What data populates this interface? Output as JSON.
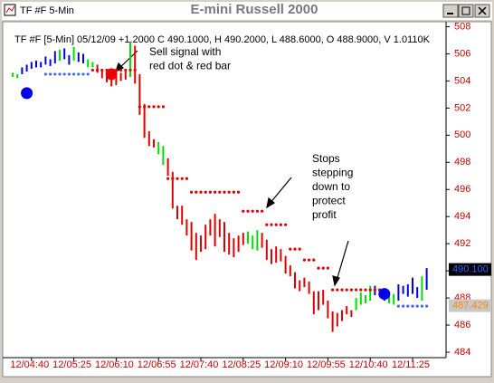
{
  "window": {
    "title": "E-mini Russell 2000",
    "tab": "TF #F 5-Min"
  },
  "chart_data": {
    "type": "ohlc",
    "subtitle": "TF #F [5-Min] 05/12/09 +1.2000 C 490.1000, H 490.2000, L 488.6000, O 488.9000, V 1.0110K",
    "categories": [
      null,
      null,
      null,
      null,
      "12/04:40",
      null,
      null,
      null,
      null,
      null,
      null,
      null,
      null,
      "12/05:25",
      null,
      null,
      null,
      null,
      null,
      null,
      null,
      null,
      "12/06:10",
      null,
      null,
      null,
      null,
      null,
      null,
      null,
      null,
      "12/06:55",
      null,
      null,
      null,
      null,
      null,
      null,
      null,
      null,
      "12/07:40",
      null,
      null,
      null,
      null,
      null,
      null,
      null,
      null,
      "12/08:25",
      null,
      null,
      null,
      null,
      null,
      null,
      null,
      null,
      "12/09:10",
      null,
      null,
      null,
      null,
      null,
      null,
      null,
      null,
      "12/09:55",
      null,
      null,
      null,
      null,
      null,
      null,
      null,
      null,
      "12/10:40",
      null,
      null,
      null,
      null,
      null,
      null,
      null,
      null,
      "12/11:25",
      null,
      null,
      null
    ],
    "high": [
      504.6,
      504.5,
      505,
      505.2,
      505.4,
      505.5,
      505.4,
      505.8,
      505.6,
      506.2,
      506.3,
      506.4,
      505.9,
      506.5,
      506.1,
      506,
      505.6,
      505.4,
      505.2,
      504.8,
      504.5,
      504.3,
      504.4,
      504.6,
      504.7,
      506.9,
      506.6,
      504.5,
      502.3,
      500.3,
      499.7,
      499.5,
      499.2,
      498.3,
      497.3,
      494.8,
      494.8,
      493.8,
      493.6,
      492.8,
      492.6,
      493.4,
      493.8,
      494.2,
      493.8,
      493.6,
      492.8,
      492.4,
      492.6,
      492.8,
      492.9,
      492.6,
      493,
      492.8,
      492.3,
      491.6,
      491.8,
      491.6,
      491.1,
      490.4,
      489.9,
      489.3,
      489.5,
      489.2,
      488.5,
      488.5,
      488.6,
      487.8,
      487,
      486.9,
      487.1,
      487.4,
      487.1,
      488,
      488.4,
      488.2,
      488.9,
      488.9,
      488.7,
      488.4,
      488.5,
      488.3,
      489,
      488.9,
      489,
      489.5,
      488.8,
      489.6,
      490.2
    ],
    "low": [
      504.3,
      504.2,
      504.5,
      504.7,
      504.9,
      505,
      505,
      505.2,
      505.1,
      505.3,
      505.5,
      505.6,
      505.2,
      505.5,
      505.4,
      505.3,
      505,
      505,
      504.6,
      504.2,
      503.9,
      503.6,
      503.7,
      504,
      504.1,
      504.3,
      503.8,
      501.5,
      499.8,
      499.2,
      499.1,
      498.6,
      497.8,
      497,
      494.6,
      493.8,
      493.4,
      492.6,
      491.5,
      490.8,
      491.4,
      491.6,
      492.6,
      491.8,
      492.5,
      491.4,
      491.2,
      491,
      491.4,
      491.9,
      492,
      491.6,
      491.5,
      491.7,
      490.8,
      490.5,
      490.6,
      490.7,
      489.8,
      489.6,
      488.7,
      488.5,
      488.8,
      488.3,
      486.8,
      487.1,
      487.5,
      486.5,
      485.5,
      485.9,
      486.3,
      486.8,
      486.6,
      487.1,
      487.5,
      487.6,
      487.8,
      488.2,
      488.3,
      487.8,
      487.6,
      487.5,
      487.8,
      488.3,
      488.1,
      488.3,
      488,
      487.8,
      488.6
    ],
    "bar_colors": [
      "#00dd00",
      "#00dd00",
      "#0000dd",
      "#0000dd",
      "#0000dd",
      "#0000dd",
      "#0000dd",
      "#0000dd",
      "#0000dd",
      "#0000dd",
      "#00dd00",
      "#0000dd",
      "#0000dd",
      "#00dd00",
      "#0000dd",
      "#0000dd",
      "#00dd00",
      "#00dd00",
      "#dd0000",
      "#dd0000",
      "#dd0000",
      "#dd0000",
      "#dd0000",
      "#dd0000",
      "#dd0000",
      "#00dd00",
      "#dd0000",
      "#dd0000",
      "#dd0000",
      "#dd0000",
      "#dd0000",
      "#00dd00",
      "#00dd00",
      "#dd0000",
      "#dd0000",
      "#dd0000",
      "#dd0000",
      "#dd0000",
      "#dd0000",
      "#dd0000",
      "#dd0000",
      "#dd0000",
      "#dd0000",
      "#dd0000",
      "#dd0000",
      "#dd0000",
      "#dd0000",
      "#dd0000",
      "#dd0000",
      "#dd0000",
      "#00dd00",
      "#00dd00",
      "#00dd00",
      "#dd0000",
      "#dd0000",
      "#dd0000",
      "#dd0000",
      "#dd0000",
      "#dd0000",
      "#dd0000",
      "#dd0000",
      "#dd0000",
      "#dd0000",
      "#dd0000",
      "#dd0000",
      "#dd0000",
      "#dd0000",
      "#dd0000",
      "#dd0000",
      "#dd0000",
      "#dd0000",
      "#dd0000",
      "#dd0000",
      "#00dd00",
      "#00dd00",
      "#00dd00",
      "#00dd00",
      "#0000dd",
      "#0000dd",
      "#0000dd",
      "#00dd00",
      "#00dd00",
      "#0000dd",
      "#0000dd",
      "#0000dd",
      "#0000dd",
      "#0000dd",
      "#00dd00",
      "#0000dd"
    ],
    "stops": [
      {
        "color": "#dd0000",
        "values": [
          null,
          null,
          null,
          null,
          null,
          null,
          null,
          null,
          null,
          null,
          null,
          null,
          null,
          null,
          null,
          null,
          null,
          504.8,
          504.8,
          504.8,
          504.8,
          504.8,
          504.8,
          504.8,
          504.8,
          504.8,
          504.8,
          502.1,
          502.1,
          502.1,
          502.1,
          502.1,
          502.1,
          496.8,
          496.8,
          496.8,
          496.8,
          496.8,
          495.8,
          495.8,
          495.8,
          495.8,
          495.8,
          495.8,
          495.8,
          495.8,
          495.8,
          495.8,
          495.8,
          494.4,
          494.4,
          494.4,
          494.4,
          494.4,
          493.4,
          493.4,
          493.4,
          493.4,
          493.4,
          491.6,
          491.6,
          491.6,
          490.8,
          490.8,
          490.8,
          490.2,
          490.2,
          490.2,
          488.6,
          488.6,
          488.6,
          488.6,
          488.6,
          488.6,
          488.6,
          488.6,
          488.6,
          488.6,
          488.6,
          488.6,
          null,
          null,
          null,
          null,
          null,
          null,
          null,
          null,
          null
        ]
      },
      {
        "color": "#4466ff",
        "values": [
          null,
          null,
          null,
          null,
          null,
          null,
          null,
          504.5,
          504.5,
          504.5,
          504.5,
          504.5,
          504.5,
          504.5,
          504.5,
          504.5,
          504.5,
          null,
          null,
          null,
          null,
          null,
          null,
          null,
          null,
          null,
          null,
          null,
          null,
          null,
          null,
          null,
          null,
          null,
          null,
          null,
          null,
          null,
          null,
          null,
          null,
          null,
          null,
          null,
          null,
          null,
          null,
          null,
          null,
          null,
          null,
          null,
          null,
          null,
          null,
          null,
          null,
          null,
          null,
          null,
          null,
          null,
          null,
          null,
          null,
          null,
          null,
          null,
          null,
          null,
          null,
          null,
          null,
          null,
          null,
          null,
          null,
          null,
          null,
          null,
          null,
          null,
          487.4,
          487.4,
          487.4,
          487.4,
          487.4,
          487.4,
          487.4
        ]
      }
    ],
    "signals": [
      {
        "index": 3,
        "value": 503.1,
        "color": "#0000ee"
      },
      {
        "index": 21,
        "value": 504.5,
        "color": "#ee0000"
      },
      {
        "index": 79,
        "value": 488.3,
        "color": "#0000ee"
      }
    ],
    "annotations": [
      {
        "lines": [
          "Sell signal with",
          "red dot & red bar"
        ]
      },
      {
        "lines": [
          "Stops",
          "stepping",
          "down to",
          "protect",
          "profit"
        ]
      }
    ],
    "price_markers": [
      {
        "value": 490.1,
        "label": "490.100",
        "color": "#3366ff",
        "background": "#000000"
      },
      {
        "value": 487.429,
        "label": "487.429",
        "color": "#ff8800",
        "background": "#c8c8c8"
      }
    ],
    "ylim": [
      484,
      508.5
    ],
    "yticks": [
      484,
      486,
      488,
      490,
      492,
      494,
      496,
      498,
      500,
      502,
      504,
      506,
      508
    ]
  }
}
